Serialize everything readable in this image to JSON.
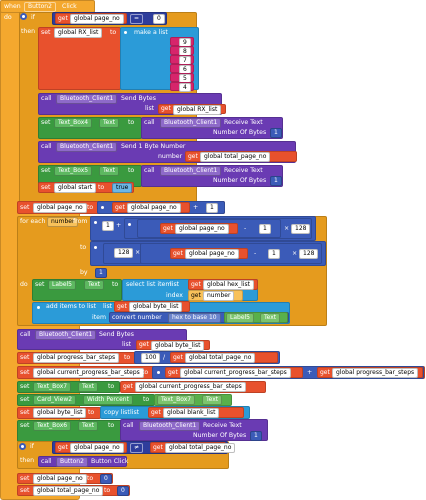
{
  "event": {
    "when": "when",
    "component": "Button2",
    "event_name": "Click",
    "do": "do"
  },
  "labels": {
    "if": "if",
    "then": "then",
    "do": "do",
    "set": "set",
    "to": "to",
    "get": "get",
    "call": "call",
    "make_a_list": "make a list",
    "list": "list",
    "number_of_bytes": "Number Of Bytes",
    "number": "number",
    "for_each": "for each",
    "from": "from",
    "by": "by",
    "index": "index",
    "item": "item",
    "select_list_item": "select list item",
    "add_items_to_list": "add items to list",
    "convert_number": "convert number",
    "copy_list": "copy list"
  },
  "vars": {
    "page_no": "global page_no",
    "rx_list": "global RX_list",
    "total_page_no": "global total_page_no",
    "start": "global start",
    "hex_list": "global hex_list",
    "number": "number",
    "byte_list": "global byte_list",
    "progress_bar_steps": "global progress_bar_steps",
    "current_progress_bar_steps": "global current_progress_bar_steps",
    "blank_list": "global blank_list"
  },
  "values": {
    "zero": "0",
    "one": "1",
    "n128": "128",
    "n100": "100",
    "true": "true",
    "list_items": [
      "9",
      "8",
      "7",
      "6",
      "5",
      "4"
    ]
  },
  "ops": {
    "eq": "=",
    "plus": "+",
    "minus": "-",
    "times": "×",
    "div": "/",
    "neq": "≠",
    "hex_to_base": "hex to base 10"
  },
  "components": {
    "bt": "Bluetooth_Client1",
    "text_box4": "Text_Box4",
    "text_box5": "Text_Box5",
    "text_box6": "Text_Box6",
    "text_box7": "Text_Box7",
    "label5": "Label5",
    "card_view2": "Card_View2",
    "button2": "Button2"
  },
  "props": {
    "text": "Text",
    "width_percent": "Width Percent"
  },
  "methods": {
    "send_bytes": "Send Bytes",
    "receive_text": "Receive Text",
    "send_1_byte_number": "Send 1 Byte Number",
    "button_click": "Button Click"
  }
}
